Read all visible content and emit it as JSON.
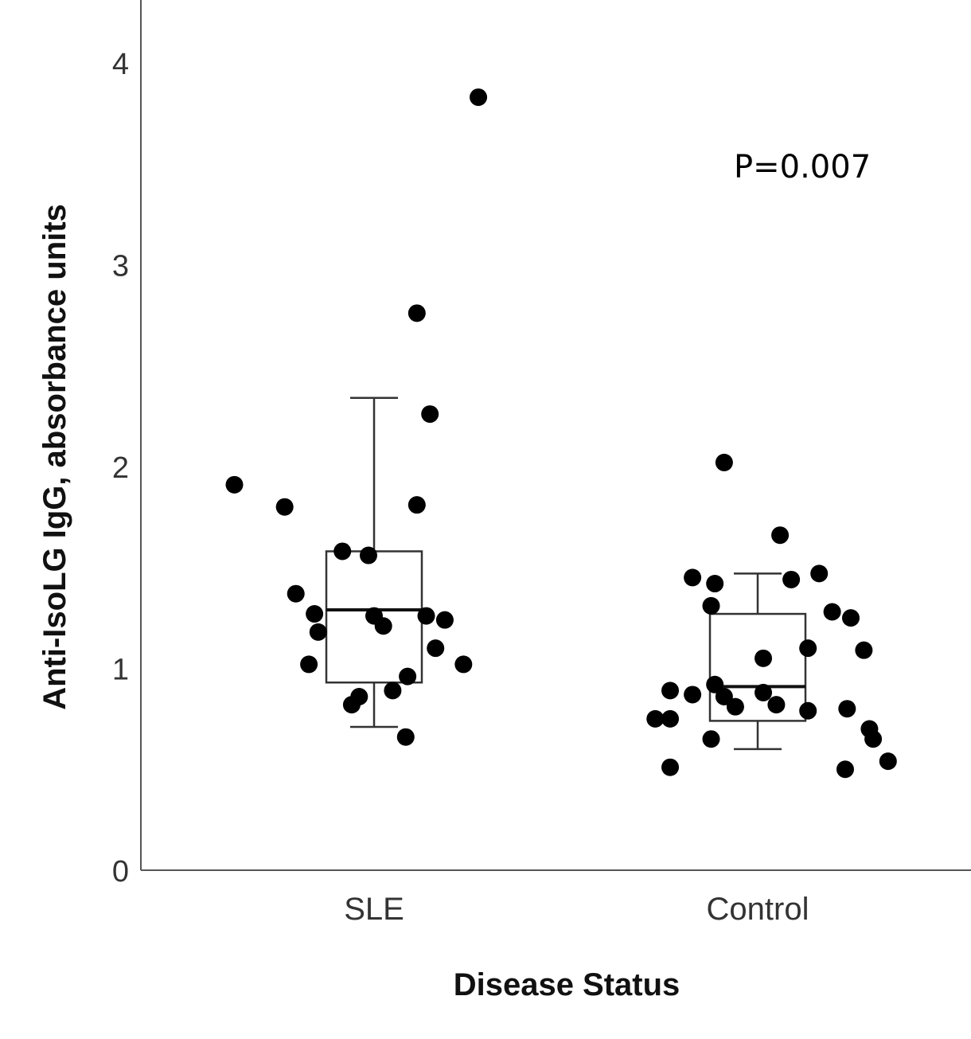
{
  "chart_data": {
    "type": "scatter",
    "subtype": "box-plot-with-jittered-points",
    "xlabel": "Disease Status",
    "ylabel": "Anti-IsoLG IgG, absorbance units",
    "ylim": [
      0,
      4.3
    ],
    "yticks": [
      "0",
      "1",
      "2",
      "3",
      "4"
    ],
    "categories": [
      "SLE",
      "Control"
    ],
    "annotation": "P=0.007",
    "series": [
      {
        "name": "SLE",
        "box": {
          "whisker_low": 0.71,
          "q1": 0.93,
          "median": 1.29,
          "q3": 1.58,
          "whisker_high": 2.34
        },
        "points": [
          {
            "x": -0.75,
            "y": 1.91
          },
          {
            "x": -0.48,
            "y": 1.8
          },
          {
            "x": -0.42,
            "y": 1.37
          },
          {
            "x": -0.32,
            "y": 1.27
          },
          {
            "x": -0.3,
            "y": 1.18
          },
          {
            "x": -0.35,
            "y": 1.02
          },
          {
            "x": -0.17,
            "y": 1.58
          },
          {
            "x": -0.12,
            "y": 0.82
          },
          {
            "x": -0.08,
            "y": 0.86
          },
          {
            "x": -0.03,
            "y": 1.56
          },
          {
            "x": 0.0,
            "y": 1.26
          },
          {
            "x": 0.05,
            "y": 1.21
          },
          {
            "x": 0.1,
            "y": 0.89
          },
          {
            "x": 0.17,
            "y": 0.66
          },
          {
            "x": 0.18,
            "y": 0.96
          },
          {
            "x": 0.23,
            "y": 2.76
          },
          {
            "x": 0.23,
            "y": 1.81
          },
          {
            "x": 0.28,
            "y": 1.26
          },
          {
            "x": 0.33,
            "y": 1.1
          },
          {
            "x": 0.38,
            "y": 1.24
          },
          {
            "x": 0.48,
            "y": 1.02
          },
          {
            "x": 0.3,
            "y": 2.26
          },
          {
            "x": 0.56,
            "y": 3.83
          }
        ]
      },
      {
        "name": "Control",
        "box": {
          "whisker_low": 0.6,
          "q1": 0.74,
          "median": 0.91,
          "q3": 1.27,
          "whisker_high": 1.47
        },
        "points": [
          {
            "x": -0.55,
            "y": 0.75
          },
          {
            "x": -0.47,
            "y": 0.75
          },
          {
            "x": -0.47,
            "y": 0.89
          },
          {
            "x": -0.47,
            "y": 0.51
          },
          {
            "x": -0.35,
            "y": 1.45
          },
          {
            "x": -0.35,
            "y": 0.87
          },
          {
            "x": -0.25,
            "y": 0.65
          },
          {
            "x": -0.23,
            "y": 1.42
          },
          {
            "x": -0.23,
            "y": 0.92
          },
          {
            "x": -0.25,
            "y": 1.31
          },
          {
            "x": -0.18,
            "y": 0.86
          },
          {
            "x": -0.18,
            "y": 2.02
          },
          {
            "x": -0.12,
            "y": 0.81
          },
          {
            "x": 0.03,
            "y": 1.05
          },
          {
            "x": 0.03,
            "y": 0.88
          },
          {
            "x": 0.1,
            "y": 0.82
          },
          {
            "x": 0.12,
            "y": 1.66
          },
          {
            "x": 0.18,
            "y": 1.44
          },
          {
            "x": 0.27,
            "y": 1.1
          },
          {
            "x": 0.27,
            "y": 0.79
          },
          {
            "x": 0.33,
            "y": 1.47
          },
          {
            "x": 0.4,
            "y": 1.28
          },
          {
            "x": 0.5,
            "y": 1.25
          },
          {
            "x": 0.48,
            "y": 0.8
          },
          {
            "x": 0.57,
            "y": 1.09
          },
          {
            "x": 0.6,
            "y": 0.7
          },
          {
            "x": 0.62,
            "y": 0.65
          },
          {
            "x": 0.47,
            "y": 0.5
          },
          {
            "x": 0.7,
            "y": 0.54
          }
        ]
      }
    ]
  }
}
